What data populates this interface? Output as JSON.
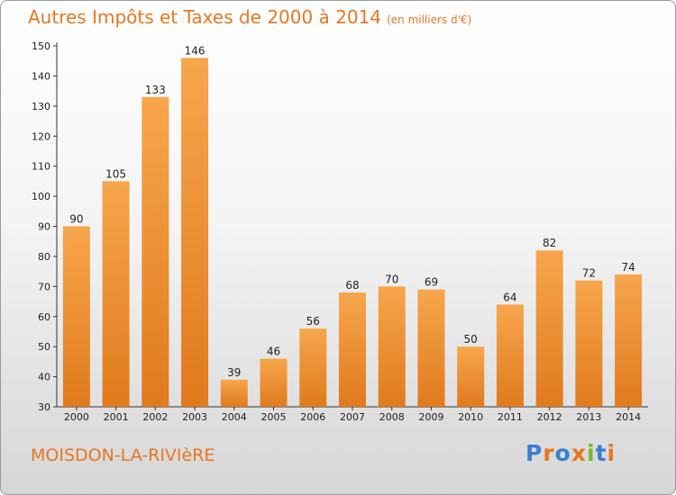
{
  "title": "Autres Impôts et Taxes de 2000 à 2014",
  "unit": "(en milliers d'€)",
  "commune": "MOISDON-LA-RIVIèRE",
  "brand": {
    "name": "Proxiti",
    "colors": [
      "#3a7fd0",
      "#e87722",
      "#3a7fd0",
      "#e87722",
      "#76b82a",
      "#3a7fd0",
      "#e87722"
    ]
  },
  "colors": {
    "accent": "#e87722",
    "bar_top": "#f7a64d",
    "bar_bottom": "#e07a1d"
  },
  "chart_data": {
    "type": "bar",
    "title": "Autres Impôts et Taxes de 2000 à 2014",
    "subtitle": "(en milliers d'€)",
    "xlabel": "",
    "ylabel": "",
    "categories": [
      "2000",
      "2001",
      "2002",
      "2003",
      "2004",
      "2005",
      "2006",
      "2007",
      "2008",
      "2009",
      "2010",
      "2011",
      "2012",
      "2013",
      "2014"
    ],
    "values": [
      90,
      105,
      133,
      146,
      39,
      46,
      56,
      68,
      70,
      69,
      50,
      64,
      82,
      72,
      74
    ],
    "ylim": [
      30,
      150
    ],
    "yticks": [
      30,
      40,
      50,
      60,
      70,
      80,
      90,
      100,
      110,
      120,
      130,
      140,
      150
    ],
    "grid": false,
    "legend": "none"
  }
}
